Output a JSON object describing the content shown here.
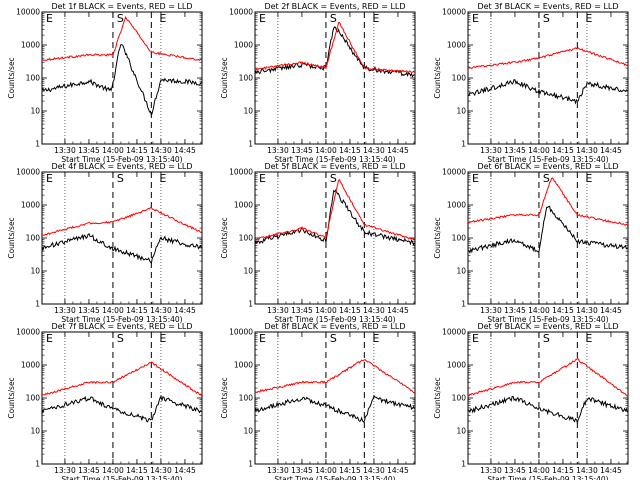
{
  "figure": {
    "background": "#ffffff",
    "ytitle": "Counts/sec",
    "xtitle": "Start Time (15-Feb-09 13:15:40)",
    "time_ticks": [
      "13:30",
      "13:45",
      "14:00",
      "14:15",
      "14:30",
      "14:45"
    ],
    "y_ticks": [
      "1",
      "10",
      "100",
      "1000",
      "10000"
    ],
    "marker_labels": {
      "start": "E",
      "peak": "S",
      "end": "E"
    }
  },
  "chart_data": [
    {
      "type": "line",
      "title": "Det 1f BLACK = Events, RED = LLD",
      "x_range_minutes_after_start": [
        0,
        100
      ],
      "ylim": [
        1,
        10000
      ],
      "y_scale": "log",
      "gridlines_dotted_at": [
        "13:30",
        "14:30"
      ],
      "dashed_markers_at": [
        "14:00",
        "14:24"
      ],
      "series": [
        {
          "name": "Events",
          "color": "#000000",
          "x": [
            "13:15:40",
            "13:45",
            "13:59",
            "14:05",
            "14:24",
            "14:30",
            "14:55"
          ],
          "values": [
            40,
            80,
            40,
            1200,
            8,
            90,
            70
          ]
        },
        {
          "name": "LLD",
          "color": "#ff0000",
          "x": [
            "13:15:40",
            "13:45",
            "14:00",
            "14:08",
            "14:24",
            "14:55"
          ],
          "values": [
            350,
            500,
            500,
            7000,
            600,
            350
          ]
        }
      ]
    },
    {
      "type": "line",
      "title": "Det 2f BLACK = Events, RED = LLD",
      "x_range_minutes_after_start": [
        0,
        100
      ],
      "ylim": [
        1,
        10000
      ],
      "y_scale": "log",
      "gridlines_dotted_at": [
        "13:30",
        "14:30"
      ],
      "dashed_markers_at": [
        "14:00",
        "14:24"
      ],
      "series": [
        {
          "name": "Events",
          "color": "#000000",
          "x": [
            "13:15:40",
            "13:45",
            "14:00",
            "14:05",
            "14:24",
            "14:55"
          ],
          "values": [
            150,
            250,
            200,
            4000,
            200,
            120
          ]
        },
        {
          "name": "LLD",
          "color": "#ff0000",
          "x": [
            "13:15:40",
            "13:45",
            "14:00",
            "14:08",
            "14:24",
            "14:55"
          ],
          "values": [
            180,
            300,
            200,
            5000,
            200,
            150
          ]
        }
      ]
    },
    {
      "type": "line",
      "title": "Det 3f BLACK = Events, RED = LLD",
      "x_range_minutes_after_start": [
        0,
        100
      ],
      "ylim": [
        1,
        10000
      ],
      "y_scale": "log",
      "gridlines_dotted_at": [
        "13:30",
        "14:30"
      ],
      "dashed_markers_at": [
        "14:00",
        "14:24"
      ],
      "series": [
        {
          "name": "Events",
          "color": "#000000",
          "x": [
            "13:15:40",
            "13:45",
            "13:59",
            "14:24",
            "14:30",
            "14:55"
          ],
          "values": [
            30,
            80,
            40,
            20,
            70,
            40
          ]
        },
        {
          "name": "LLD",
          "color": "#ff0000",
          "x": [
            "13:15:40",
            "13:45",
            "14:00",
            "14:24",
            "14:55"
          ],
          "values": [
            200,
            300,
            400,
            800,
            250
          ]
        }
      ]
    },
    {
      "type": "line",
      "title": "Det 4f BLACK = Events, RED = LLD",
      "x_range_minutes_after_start": [
        0,
        100
      ],
      "ylim": [
        1,
        10000
      ],
      "y_scale": "log",
      "gridlines_dotted_at": [
        "13:30",
        "14:30"
      ],
      "dashed_markers_at": [
        "14:00",
        "14:24"
      ],
      "series": [
        {
          "name": "Events",
          "color": "#000000",
          "x": [
            "13:15:40",
            "13:45",
            "13:59",
            "14:24",
            "14:30",
            "14:55"
          ],
          "values": [
            50,
            120,
            50,
            20,
            100,
            50
          ]
        },
        {
          "name": "LLD",
          "color": "#ff0000",
          "x": [
            "13:15:40",
            "13:45",
            "14:00",
            "14:24",
            "14:55"
          ],
          "values": [
            120,
            280,
            300,
            800,
            150
          ]
        }
      ]
    },
    {
      "type": "line",
      "title": "Det 5f BLACK = Events, RED = LLD",
      "x_range_minutes_after_start": [
        0,
        100
      ],
      "ylim": [
        1,
        10000
      ],
      "y_scale": "log",
      "gridlines_dotted_at": [
        "13:30",
        "14:30"
      ],
      "dashed_markers_at": [
        "14:00",
        "14:24"
      ],
      "series": [
        {
          "name": "Events",
          "color": "#000000",
          "x": [
            "13:15:40",
            "13:45",
            "14:00",
            "14:05",
            "14:24",
            "14:55"
          ],
          "values": [
            70,
            180,
            80,
            3000,
            150,
            70
          ]
        },
        {
          "name": "LLD",
          "color": "#ff0000",
          "x": [
            "13:15:40",
            "13:45",
            "14:00",
            "14:08",
            "14:24",
            "14:55"
          ],
          "values": [
            90,
            200,
            100,
            6000,
            250,
            90
          ]
        }
      ]
    },
    {
      "type": "line",
      "title": "Det 6f BLACK = Events, RED = LLD",
      "x_range_minutes_after_start": [
        0,
        100
      ],
      "ylim": [
        1,
        10000
      ],
      "y_scale": "log",
      "gridlines_dotted_at": [
        "13:30",
        "14:30"
      ],
      "dashed_markers_at": [
        "14:00",
        "14:24"
      ],
      "series": [
        {
          "name": "Events",
          "color": "#000000",
          "x": [
            "13:15:40",
            "13:45",
            "14:00",
            "14:05",
            "14:24",
            "14:55"
          ],
          "values": [
            40,
            90,
            40,
            1000,
            80,
            50
          ]
        },
        {
          "name": "LLD",
          "color": "#ff0000",
          "x": [
            "13:15:40",
            "13:45",
            "14:00",
            "14:08",
            "14:24",
            "14:55"
          ],
          "values": [
            300,
            500,
            500,
            7000,
            500,
            250
          ]
        }
      ]
    },
    {
      "type": "line",
      "title": "Det 7f BLACK = Events, RED = LLD",
      "x_range_minutes_after_start": [
        0,
        100
      ],
      "ylim": [
        1,
        10000
      ],
      "y_scale": "log",
      "gridlines_dotted_at": [
        "13:30",
        "14:30"
      ],
      "dashed_markers_at": [
        "14:00",
        "14:24"
      ],
      "series": [
        {
          "name": "Events",
          "color": "#000000",
          "x": [
            "13:15:40",
            "13:45",
            "13:59",
            "14:24",
            "14:30",
            "14:55"
          ],
          "values": [
            40,
            100,
            50,
            20,
            100,
            40
          ]
        },
        {
          "name": "LLD",
          "color": "#ff0000",
          "x": [
            "13:15:40",
            "13:45",
            "14:00",
            "14:24",
            "14:55"
          ],
          "values": [
            120,
            300,
            300,
            1200,
            120
          ]
        }
      ]
    },
    {
      "type": "line",
      "title": "Det 8f BLACK = Events, RED = LLD",
      "x_range_minutes_after_start": [
        0,
        100
      ],
      "ylim": [
        1,
        10000
      ],
      "y_scale": "log",
      "gridlines_dotted_at": [
        "13:30",
        "14:30"
      ],
      "dashed_markers_at": [
        "14:00",
        "14:24"
      ],
      "series": [
        {
          "name": "Events",
          "color": "#000000",
          "x": [
            "13:15:40",
            "13:45",
            "13:59",
            "14:24",
            "14:30",
            "14:55"
          ],
          "values": [
            40,
            100,
            60,
            20,
            100,
            50
          ]
        },
        {
          "name": "LLD",
          "color": "#ff0000",
          "x": [
            "13:15:40",
            "13:45",
            "14:00",
            "14:24",
            "14:55"
          ],
          "values": [
            150,
            300,
            300,
            1500,
            150
          ]
        }
      ]
    },
    {
      "type": "line",
      "title": "Det 9f BLACK = Events, RED = LLD",
      "x_range_minutes_after_start": [
        0,
        100
      ],
      "ylim": [
        1,
        10000
      ],
      "y_scale": "log",
      "gridlines_dotted_at": [
        "13:30",
        "14:30"
      ],
      "dashed_markers_at": [
        "14:00",
        "14:24"
      ],
      "series": [
        {
          "name": "Events",
          "color": "#000000",
          "x": [
            "13:15:40",
            "13:45",
            "13:59",
            "14:24",
            "14:30",
            "14:55"
          ],
          "values": [
            40,
            100,
            50,
            20,
            100,
            40
          ]
        },
        {
          "name": "LLD",
          "color": "#ff0000",
          "x": [
            "13:15:40",
            "13:45",
            "14:00",
            "14:24",
            "14:55"
          ],
          "values": [
            120,
            300,
            300,
            1500,
            120
          ]
        }
      ]
    }
  ]
}
